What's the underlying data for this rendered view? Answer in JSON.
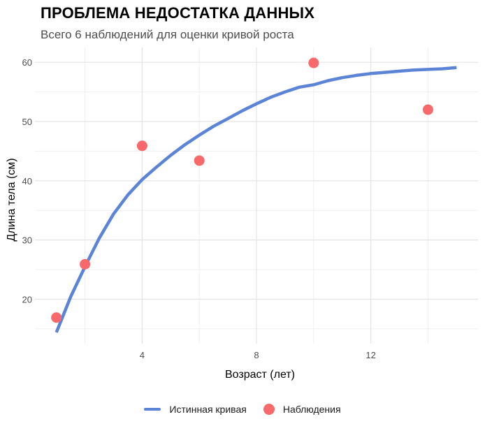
{
  "chart_data": {
    "type": "line",
    "title": "ПРОБЛЕМА НЕДОСТАТКА ДАННЫХ",
    "subtitle": "Всего 6 наблюдений для оценки кривой роста",
    "xlabel": "Возраст (лет)",
    "ylabel": "Длина тела (см)",
    "xlim": [
      0.25,
      15.75
    ],
    "ylim": [
      12.5,
      62.5
    ],
    "x_ticks": [
      4,
      8,
      12
    ],
    "y_ticks": [
      20,
      30,
      40,
      50,
      60
    ],
    "grid": true,
    "legend_position": "bottom",
    "series": [
      {
        "name": "Истинная кривая",
        "kind": "line",
        "color": "#5b84d6",
        "x": [
          1,
          1.5,
          2,
          2.5,
          3,
          3.5,
          4,
          4.5,
          5,
          5.5,
          6,
          6.5,
          7,
          7.5,
          8,
          8.5,
          9,
          9.5,
          10,
          10.5,
          11,
          11.5,
          12,
          12.5,
          13,
          13.5,
          14,
          14.5,
          15
        ],
        "y": [
          14.4,
          20.4,
          25.5,
          30.3,
          34.4,
          37.6,
          40.2,
          42.3,
          44.3,
          46.1,
          47.7,
          49.2,
          50.5,
          51.8,
          53.0,
          54.1,
          55.0,
          55.8,
          56.2,
          56.9,
          57.4,
          57.8,
          58.1,
          58.3,
          58.5,
          58.7,
          58.8,
          58.9,
          59.1
        ]
      },
      {
        "name": "Наблюдения",
        "kind": "scatter",
        "color": "#f8696b",
        "x": [
          1,
          2,
          4,
          6,
          10,
          14
        ],
        "y": [
          16.9,
          25.9,
          45.9,
          43.4,
          59.9,
          52.0
        ]
      }
    ]
  }
}
